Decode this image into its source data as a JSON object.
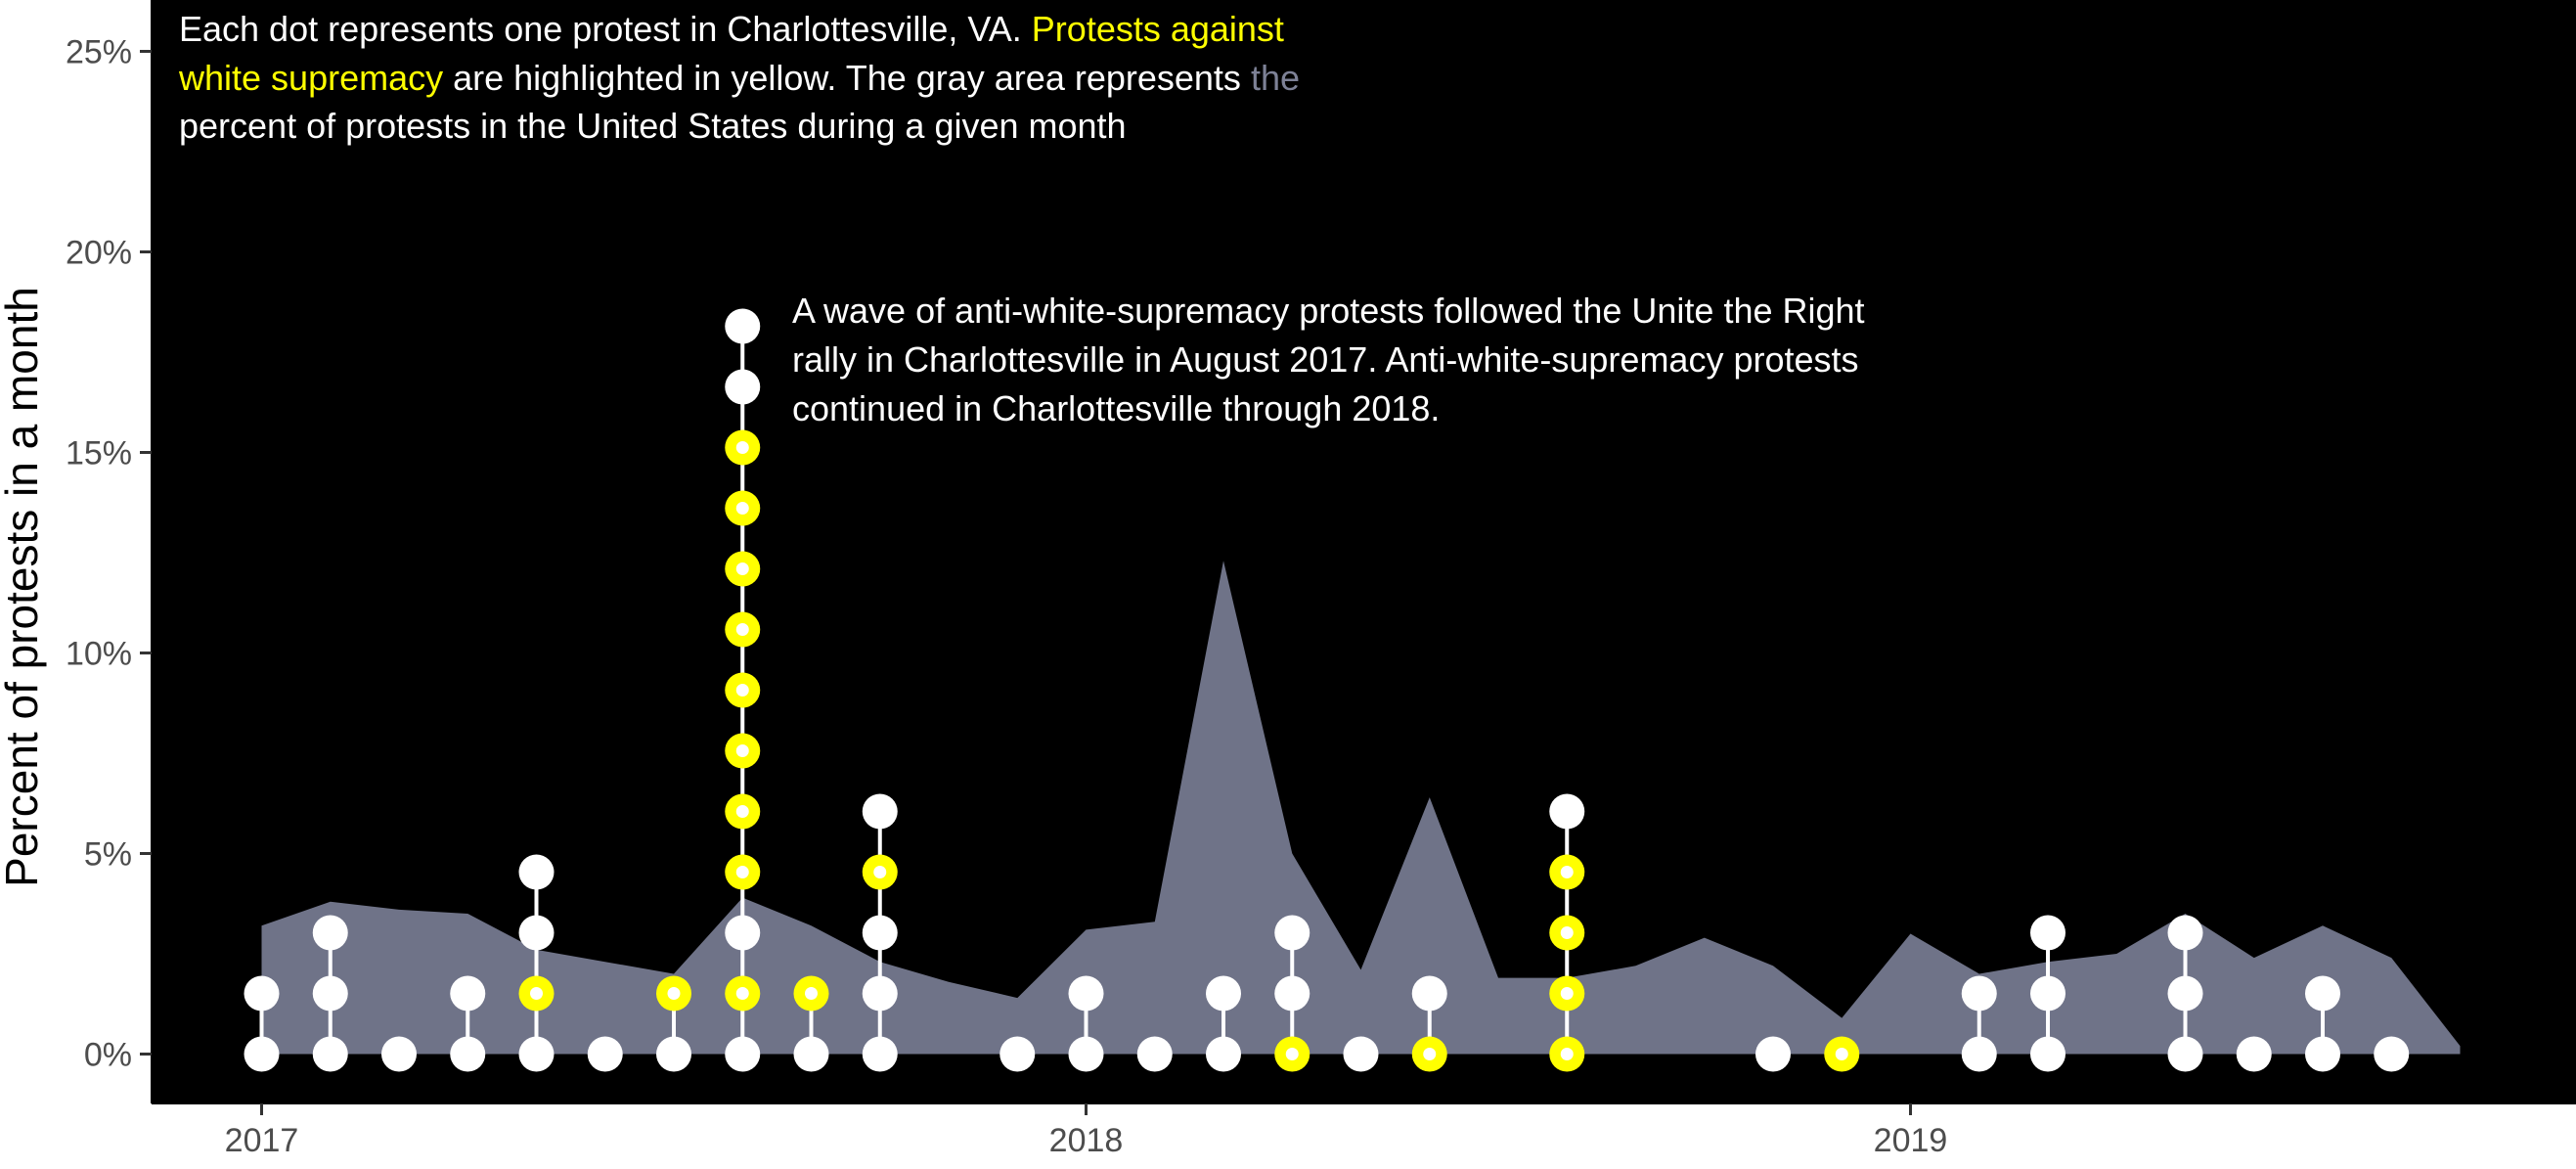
{
  "chart_data": {
    "type": "area",
    "ylabel": "Percent of protests in a month",
    "xlabel": "",
    "ylim": [
      0,
      26
    ],
    "y_ticks": [
      "0%",
      "5%",
      "10%",
      "15%",
      "20%",
      "25%"
    ],
    "x_ticks": [
      "2017",
      "2018",
      "2019"
    ],
    "grid": false,
    "colors": {
      "panel": "#000000",
      "area": "#6f7388",
      "dot": "#ffffff",
      "highlight": "#ffff00",
      "note_highlight": "#ffff00",
      "note_gray": "#7d8196"
    },
    "caption": {
      "line1_a": "Each dot represents one protest in Charlottesville, VA. ",
      "line1_b": "Protests against",
      "line2_a": "white supremacy",
      "line2_b": " are highlighted in yellow. The gray area represents ",
      "line2_c": "the",
      "line3": "percent of protests in the United States during a given month"
    },
    "annotation": [
      "A wave of anti-white-supremacy protests followed the Unite the Right",
      "rally in Charlottesville in  August 2017. Anti-white-supremacy protests",
      "continued in Charlottesville through 2018."
    ],
    "series": [
      {
        "name": "percent of protests in the United States during a given month",
        "x": [
          "2017-01",
          "2017-02",
          "2017-03",
          "2017-04",
          "2017-05",
          "2017-06",
          "2017-07",
          "2017-08",
          "2017-09",
          "2017-10",
          "2017-11",
          "2017-12",
          "2018-01",
          "2018-02",
          "2018-03",
          "2018-04",
          "2018-05",
          "2018-06",
          "2018-07",
          "2018-08",
          "2018-09",
          "2018-10",
          "2018-11",
          "2018-12",
          "2019-01",
          "2019-02",
          "2019-03",
          "2019-04",
          "2019-05",
          "2019-06",
          "2019-07",
          "2019-08",
          "2019-09",
          "2019-10"
        ],
        "values": [
          3.2,
          3.8,
          3.6,
          3.5,
          2.6,
          2.3,
          2.0,
          3.9,
          3.2,
          2.3,
          1.8,
          1.4,
          3.1,
          3.3,
          12.3,
          5.0,
          2.1,
          6.4,
          1.9,
          1.9,
          2.2,
          2.9,
          2.2,
          0.9,
          3.0,
          2.0,
          2.3,
          2.5,
          3.5,
          2.4,
          3.2,
          2.4,
          0.2,
          null
        ]
      }
    ],
    "protests": [
      {
        "month": "2017-01",
        "dots": [
          "w",
          "w"
        ]
      },
      {
        "month": "2017-02",
        "dots": [
          "w",
          "w",
          "w"
        ]
      },
      {
        "month": "2017-03",
        "dots": [
          "w"
        ]
      },
      {
        "month": "2017-04",
        "dots": [
          "w",
          "w"
        ]
      },
      {
        "month": "2017-05",
        "dots": [
          "w",
          "y",
          "w",
          "w"
        ]
      },
      {
        "month": "2017-06",
        "dots": [
          "w"
        ]
      },
      {
        "month": "2017-07",
        "dots": [
          "w",
          "y"
        ]
      },
      {
        "month": "2017-08",
        "dots": [
          "w",
          "y",
          "w",
          "y",
          "y",
          "y",
          "y",
          "y",
          "y",
          "y",
          "y",
          "w",
          "w"
        ]
      },
      {
        "month": "2017-09",
        "dots": [
          "w",
          "y"
        ]
      },
      {
        "month": "2017-10",
        "dots": [
          "w",
          "w",
          "w",
          "y",
          "w"
        ]
      },
      {
        "month": "2017-12",
        "dots": [
          "w"
        ]
      },
      {
        "month": "2018-01",
        "dots": [
          "w",
          "w"
        ]
      },
      {
        "month": "2018-02",
        "dots": [
          "w"
        ]
      },
      {
        "month": "2018-03",
        "dots": [
          "w",
          "w"
        ]
      },
      {
        "month": "2018-04",
        "dots": [
          "y",
          "w",
          "w"
        ]
      },
      {
        "month": "2018-05",
        "dots": [
          "w"
        ]
      },
      {
        "month": "2018-06",
        "dots": [
          "y",
          "w"
        ]
      },
      {
        "month": "2018-08",
        "dots": [
          "y",
          "y",
          "y",
          "y",
          "w"
        ]
      },
      {
        "month": "2018-11",
        "dots": [
          "w"
        ]
      },
      {
        "month": "2018-12",
        "dots": [
          "y"
        ]
      },
      {
        "month": "2019-02",
        "dots": [
          "w",
          "w"
        ]
      },
      {
        "month": "2019-03",
        "dots": [
          "w",
          "w",
          "w"
        ]
      },
      {
        "month": "2019-05",
        "dots": [
          "w",
          "w",
          "w"
        ]
      },
      {
        "month": "2019-06",
        "dots": [
          "w"
        ]
      },
      {
        "month": "2019-07",
        "dots": [
          "w",
          "w"
        ]
      },
      {
        "month": "2019-08",
        "dots": [
          "w"
        ]
      }
    ]
  }
}
